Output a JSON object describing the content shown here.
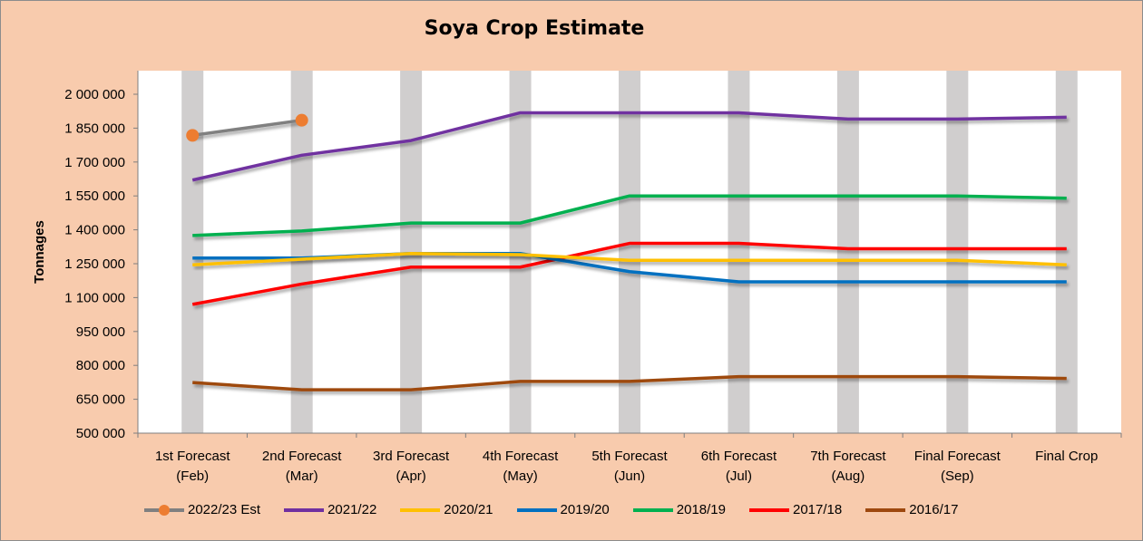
{
  "chart_data": {
    "type": "line",
    "title": "Soya Crop Estimate",
    "ylabel": "Tonnages",
    "xlabel": "",
    "ylim": [
      500000,
      2000000
    ],
    "yticks": [
      500000,
      650000,
      800000,
      950000,
      1100000,
      1250000,
      1400000,
      1550000,
      1700000,
      1850000,
      2000000
    ],
    "ytick_labels": [
      "500 000",
      "650 000",
      "800 000",
      "950 000",
      "1 100 000",
      "1 250 000",
      "1 400 000",
      "1 550 000",
      "1 700 000",
      "1 850 000",
      "2 000 000"
    ],
    "categories": [
      [
        "1st Forecast",
        "(Feb)"
      ],
      [
        "2nd Forecast",
        "(Mar)"
      ],
      [
        "3rd Forecast",
        "(Apr)"
      ],
      [
        "4th Forecast",
        "(May)"
      ],
      [
        "5th Forecast",
        "(Jun)"
      ],
      [
        "6th Forecast",
        "(Jul)"
      ],
      [
        "7th Forecast",
        "(Aug)"
      ],
      [
        "Final Forecast",
        "(Sep)"
      ],
      [
        "Final Crop"
      ]
    ],
    "grid": false,
    "column_bands": true,
    "legend_position": "bottom",
    "series": [
      {
        "name": "2016/17",
        "color": "#9e480e",
        "values": [
          724000,
          692000,
          692000,
          729000,
          729000,
          750000,
          750000,
          750000,
          742000
        ]
      },
      {
        "name": "2017/18",
        "color": "#ff0000",
        "values": [
          1070000,
          1160000,
          1235000,
          1235000,
          1340000,
          1340000,
          1316000,
          1316000,
          1316000
        ]
      },
      {
        "name": "2018/19",
        "color": "#00b050",
        "values": [
          1375000,
          1395000,
          1430000,
          1430000,
          1550000,
          1550000,
          1550000,
          1550000,
          1540000
        ]
      },
      {
        "name": "2019/20",
        "color": "#0070c0",
        "values": [
          1275000,
          1275000,
          1295000,
          1295000,
          1215000,
          1170000,
          1170000,
          1170000,
          1170000
        ]
      },
      {
        "name": "2020/21",
        "color": "#ffc000",
        "values": [
          1245000,
          1270000,
          1295000,
          1290000,
          1265000,
          1265000,
          1265000,
          1265000,
          1245000
        ]
      },
      {
        "name": "2021/22",
        "color": "#7030a0",
        "values": [
          1620000,
          1730000,
          1795000,
          1918000,
          1918000,
          1918000,
          1890000,
          1890000,
          1898000
        ]
      },
      {
        "name": "2022/23 Est",
        "color": "#808080",
        "marker_color": "#ed7d31",
        "markers": true,
        "values": [
          1818000,
          1885000,
          null,
          null,
          null,
          null,
          null,
          null,
          null
        ]
      }
    ],
    "legend_order": [
      "2022/23 Est",
      "2021/22",
      "2020/21",
      "2019/20",
      "2018/19",
      "2017/18",
      "2016/17"
    ]
  }
}
